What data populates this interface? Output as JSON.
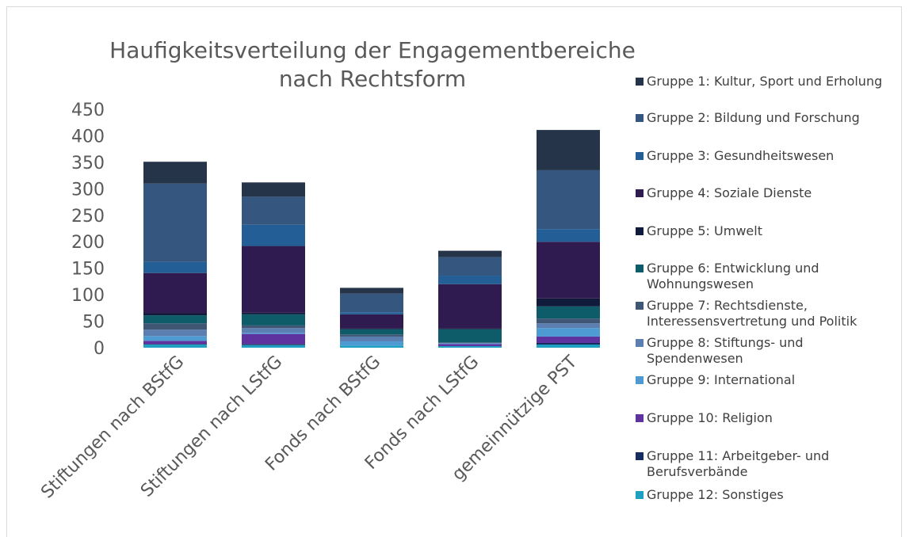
{
  "chart_data": {
    "type": "stacked_bar",
    "title": "Haufigkeitsverteilung der Engagementbereiche nach Rechtsform",
    "categories": [
      "Stiftungen nach BStfG",
      "Stiftungen nach LStfG",
      "Fonds nach BStfG",
      "Fonds nach LStfG",
      "gemeinnützige PST"
    ],
    "ylim": [
      0,
      450
    ],
    "yticks": [
      0,
      50,
      100,
      150,
      200,
      250,
      300,
      350,
      400,
      450
    ],
    "grid": false,
    "legend": "right",
    "series": [
      {
        "name": "Gruppe 12: Sonstiges",
        "color": "#1f9fc2",
        "values": [
          6,
          5,
          4,
          3,
          6
        ]
      },
      {
        "name": "Gruppe 11: Arbeitgeber- und Berufsverbände",
        "color": "#152c5e",
        "values": [
          1,
          2,
          0,
          0,
          3
        ]
      },
      {
        "name": "Gruppe 10: Religion",
        "color": "#5e33a0",
        "values": [
          6,
          19,
          0,
          4,
          12
        ]
      },
      {
        "name": "Gruppe 9: International",
        "color": "#4e9bd4",
        "values": [
          9,
          2,
          8,
          1,
          16
        ]
      },
      {
        "name": "Gruppe 8: Stiftungs- und Spendenwesen",
        "color": "#5b7fb0",
        "values": [
          12,
          9,
          9,
          1,
          9
        ]
      },
      {
        "name": "Gruppe 7: Rechtsdienste, Interessensvertretung und Politik",
        "color": "#3f5774",
        "values": [
          12,
          5,
          4,
          1,
          9
        ]
      },
      {
        "name": "Gruppe 6: Entwicklung und Wohnungswesen",
        "color": "#0e5b69",
        "values": [
          15,
          21,
          10,
          25,
          23
        ]
      },
      {
        "name": "Gruppe 5: Umwelt",
        "color": "#101a3a",
        "values": [
          4,
          3,
          1,
          1,
          15
        ]
      },
      {
        "name": "Gruppe 4: Soziale Dienste",
        "color": "#2f1b4f",
        "values": [
          76,
          126,
          27,
          84,
          107
        ]
      },
      {
        "name": "Gruppe 3: Gesundheitswesen",
        "color": "#235f96",
        "values": [
          21,
          40,
          4,
          16,
          24
        ]
      },
      {
        "name": "Gruppe 2: Bildung und Forschung",
        "color": "#34567f",
        "values": [
          148,
          53,
          35,
          35,
          111
        ]
      },
      {
        "name": "Gruppe 1: Kultur, Sport und Erholung",
        "color": "#253449",
        "values": [
          41,
          27,
          11,
          12,
          76
        ]
      }
    ]
  }
}
